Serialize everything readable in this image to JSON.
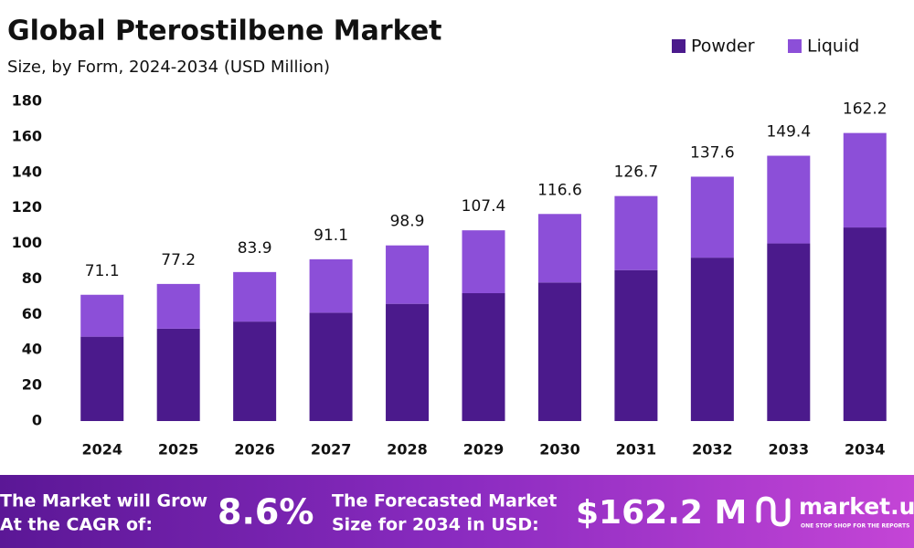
{
  "chart_data": {
    "type": "stacked_bar",
    "title": "Global Pterostilbene Market",
    "subtitle": "Size, by Form, 2024-2034 (USD Million)",
    "categories": [
      "2024",
      "2025",
      "2026",
      "2027",
      "2028",
      "2029",
      "2030",
      "2031",
      "2032",
      "2033",
      "2034"
    ],
    "series": [
      {
        "name": "Powder",
        "color": "#4b1a8c",
        "values": [
          47.5,
          52,
          56,
          61,
          66,
          72,
          78,
          85,
          92,
          100,
          109
        ]
      },
      {
        "name": "Liquid",
        "color": "#8c4fd8",
        "values": [
          23.6,
          25.2,
          27.9,
          30.1,
          32.9,
          35.4,
          38.6,
          41.7,
          45.6,
          49.4,
          53.2
        ]
      }
    ],
    "totals": [
      71.1,
      77.2,
      83.9,
      91.1,
      98.9,
      107.4,
      116.6,
      126.7,
      137.6,
      149.4,
      162.2
    ],
    "ylim": [
      0,
      180
    ],
    "yticks": [
      0,
      20,
      40,
      60,
      80,
      100,
      120,
      140,
      160,
      180
    ],
    "grid": false,
    "legend": "top-right"
  },
  "footer": {
    "cagr_text": [
      "The Market will Grow",
      "At the CAGR of:"
    ],
    "cagr_value": "8.6%",
    "forecast_text": [
      "The Forecasted Market",
      "Size for 2034 in USD:"
    ],
    "forecast_value": "$162.2 M",
    "brand": "market.us",
    "tagline": "ONE STOP SHOP FOR THE REPORTS"
  }
}
